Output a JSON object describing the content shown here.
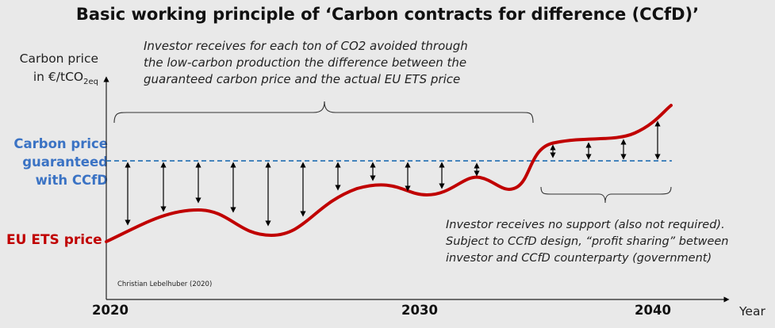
{
  "title": "Basic working principle of ‘Carbon contracts for difference (CCfD)’",
  "y_axis": {
    "label_line1": "Carbon price",
    "label_line2_prefix": "in €/tCO",
    "label_line2_sub": "2eq"
  },
  "guaranteed_label": [
    "Carbon price",
    "guaranteed",
    "with CCfD"
  ],
  "ets_label": "EU ETS price",
  "annotation_top": [
    "Investor receives for each ton of CO2 avoided through",
    "the low-carbon production the difference between the",
    "guaranteed carbon price and the actual EU ETS price"
  ],
  "annotation_bottom": [
    "Investor receives no support (also not required).",
    "Subject to CCfD design, “profit sharing” between",
    "investor and CCfD counterparty (government)"
  ],
  "credit": "Christian Lebelhuber (2020)",
  "x_axis": {
    "ticks": [
      "2020",
      "2030",
      "2040"
    ],
    "unit_label": "Year"
  },
  "colors": {
    "ets_line": "#c00000",
    "guaranteed_line": "#2e75b6",
    "guaranteed_text": "#3b73c4",
    "background": "#e9e9e9"
  }
}
